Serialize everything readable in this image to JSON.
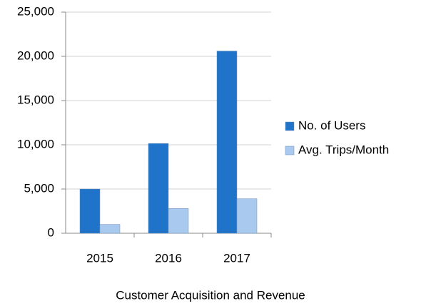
{
  "chart_data": {
    "type": "bar",
    "x_label": "Customer Acquisition and Revenue",
    "categories": [
      "2015",
      "2016",
      "2017"
    ],
    "series": [
      {
        "name": "No. of Users",
        "color": "#1f74c9",
        "values": [
          5000,
          10150,
          20600
        ]
      },
      {
        "name": "Avg. Trips/Month",
        "color": "#a9c9ef",
        "values": [
          1000,
          2800,
          3900
        ]
      }
    ],
    "ylim": [
      0,
      25000
    ],
    "yticks": [
      0,
      {
        "value": 5000,
        "label": "5,000"
      },
      {
        "value": 10000,
        "label": "10,000"
      },
      {
        "value": 15000,
        "label": "15,000"
      },
      {
        "value": 20000,
        "label": "20,000"
      },
      {
        "value": 25000,
        "label": "25,000"
      }
    ],
    "grid": true,
    "legend": "right"
  }
}
